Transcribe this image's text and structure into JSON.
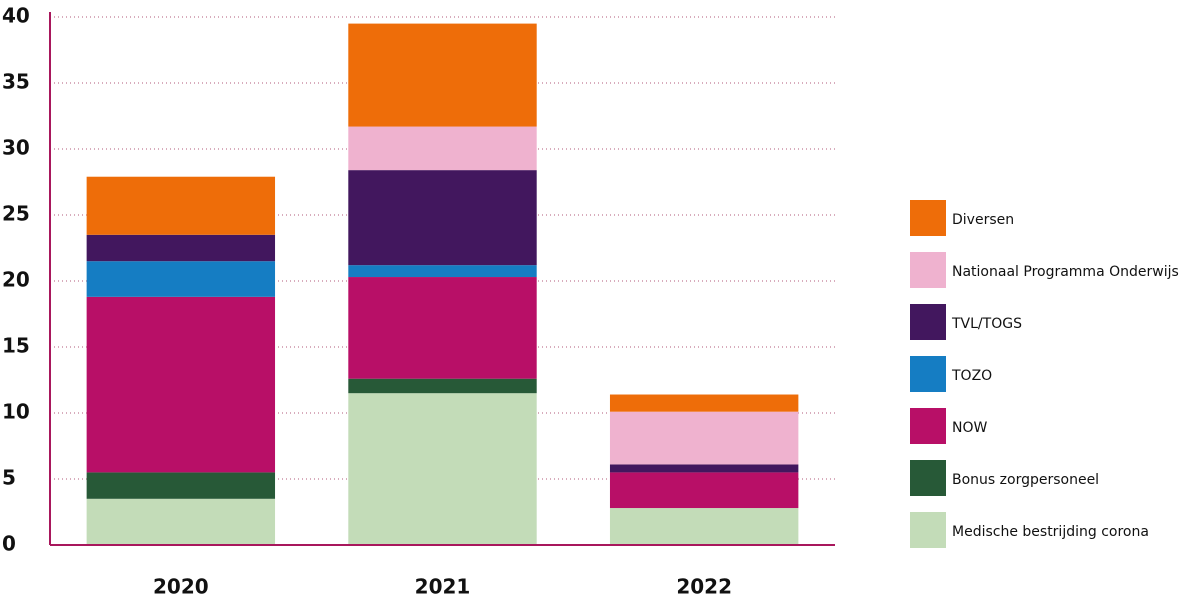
{
  "chart_data": {
    "type": "stacked_bar",
    "categories": [
      "2020",
      "2021",
      "2022"
    ],
    "series": [
      {
        "name": "Medische bestrijding corona",
        "color": "#c3dcb8",
        "values": [
          3.5,
          11.5,
          2.8
        ]
      },
      {
        "name": "Bonus zorgpersoneel",
        "color": "#275937",
        "values": [
          2.0,
          1.1,
          0
        ]
      },
      {
        "name": "NOW",
        "color": "#b80f67",
        "values": [
          13.3,
          7.7,
          2.7
        ]
      },
      {
        "name": "TOZO",
        "color": "#157dc3",
        "values": [
          2.7,
          0.9,
          0
        ]
      },
      {
        "name": "TVL/TOGS",
        "color": "#42175e",
        "values": [
          2.0,
          7.2,
          0.6
        ]
      },
      {
        "name": "Nationaal Programma Onderwijs",
        "color": "#efb2cf",
        "values": [
          0,
          3.3,
          4.0
        ]
      },
      {
        "name": "Diversen",
        "color": "#ee6d09",
        "values": [
          4.4,
          7.8,
          1.3
        ]
      }
    ],
    "ylim": [
      0,
      40
    ],
    "yticks": [
      0,
      5,
      10,
      15,
      20,
      25,
      30,
      35,
      40
    ],
    "grid": true,
    "legend": "right"
  }
}
